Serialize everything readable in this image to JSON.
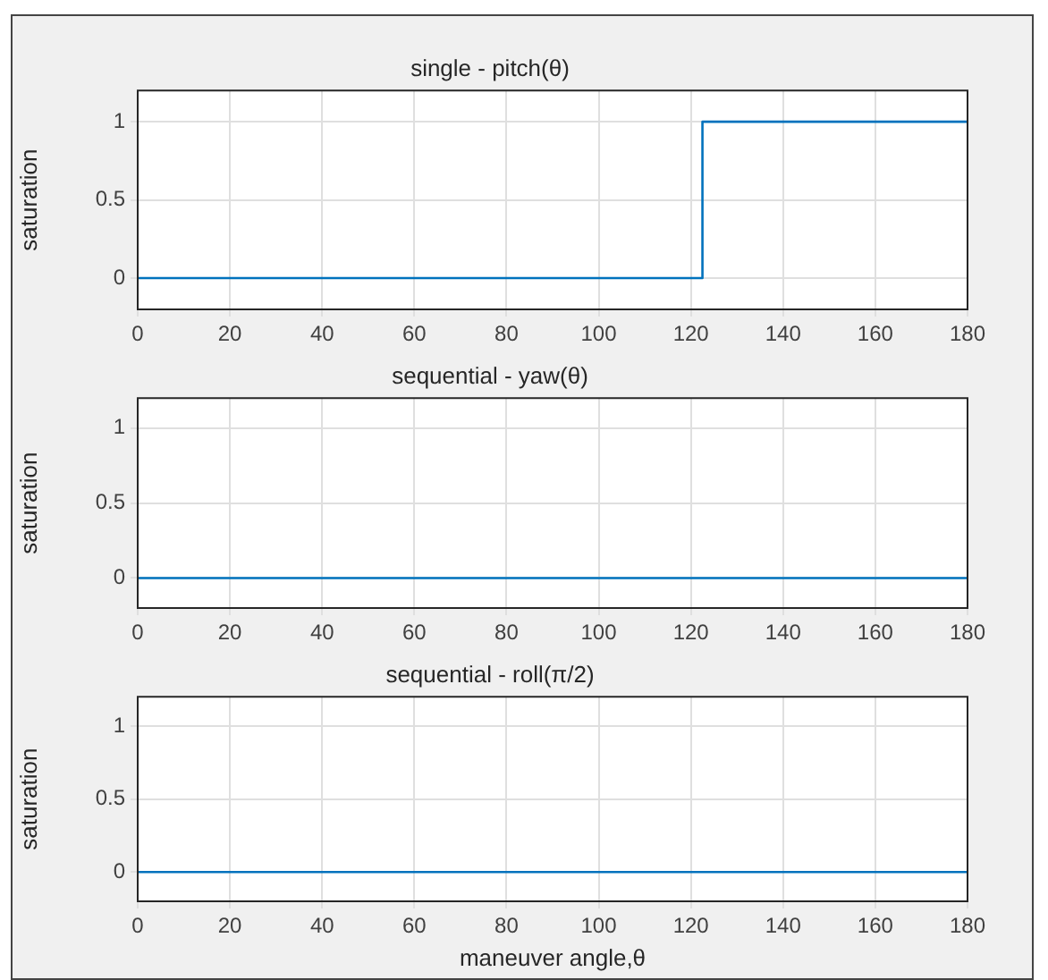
{
  "chart_data": [
    {
      "type": "step",
      "title": "single - pitch(θ)",
      "ylabel": "saturation",
      "x": [
        0,
        122.5,
        180
      ],
      "series": [
        {
          "color": "#0072bd",
          "values": [
            0,
            1,
            1
          ]
        }
      ],
      "xlim": [
        0,
        180
      ],
      "ylim": [
        -0.2,
        1.2
      ],
      "xticks": [
        0,
        20,
        40,
        60,
        80,
        100,
        120,
        140,
        160,
        180
      ],
      "yticks": [
        0,
        0.5,
        1
      ],
      "grid": true
    },
    {
      "type": "step",
      "title": "sequential - yaw(θ)",
      "ylabel": "saturation",
      "x": [
        0,
        180
      ],
      "series": [
        {
          "color": "#0072bd",
          "values": [
            0,
            0
          ]
        }
      ],
      "xlim": [
        0,
        180
      ],
      "ylim": [
        -0.2,
        1.2
      ],
      "xticks": [
        0,
        20,
        40,
        60,
        80,
        100,
        120,
        140,
        160,
        180
      ],
      "yticks": [
        0,
        0.5,
        1
      ],
      "grid": true
    },
    {
      "type": "step",
      "title": "sequential - roll(π/2)",
      "xlabel": "maneuver angle,θ",
      "ylabel": "saturation",
      "x": [
        0,
        180
      ],
      "series": [
        {
          "color": "#0072bd",
          "values": [
            0,
            0
          ]
        }
      ],
      "xlim": [
        0,
        180
      ],
      "ylim": [
        -0.2,
        1.2
      ],
      "xticks": [
        0,
        20,
        40,
        60,
        80,
        100,
        120,
        140,
        160,
        180
      ],
      "yticks": [
        0,
        0.5,
        1
      ],
      "grid": true
    }
  ]
}
